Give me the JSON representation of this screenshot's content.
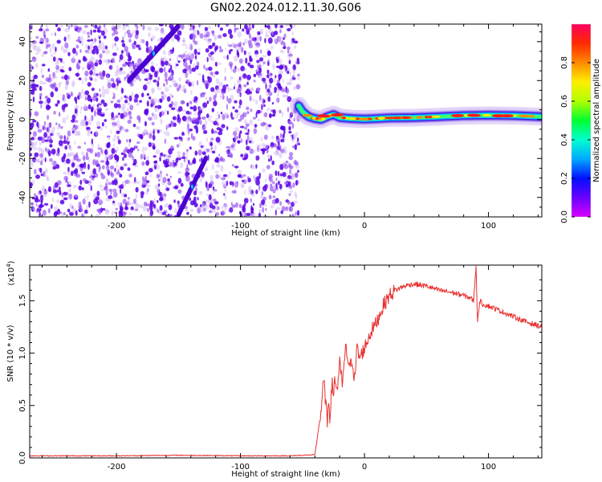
{
  "figure_title": "GN02.2024.012.11.30.G06",
  "colors": {
    "snr_line": "#e8302e",
    "scatter_dark": "#5b00e6",
    "scatter_mid": "#8a3cf0",
    "scatter_light": "#d2b8f5",
    "colormap": [
      "#d900ff",
      "#6a00ff",
      "#0010ff",
      "#00a8ff",
      "#00ffd0",
      "#00ff30",
      "#b0ff00",
      "#ffee00",
      "#ff8a00",
      "#ff2a00",
      "#ff0060"
    ]
  },
  "chart_data": [
    {
      "type": "heatmap",
      "xlabel": "Height of straight line (km)",
      "ylabel": "Frequency (Hz)",
      "xlim": [
        -270,
        143
      ],
      "ylim": [
        -50,
        49
      ],
      "xticks": [
        -200,
        -100,
        0,
        100
      ],
      "yticks": [
        -40,
        -20,
        0,
        20,
        40
      ],
      "grid": false,
      "noise_region_x": [
        -270,
        -53
      ],
      "signal_track": {
        "x": [
          -53,
          -50,
          -45,
          -40,
          -35,
          -30,
          -25,
          -20,
          -10,
          0,
          10,
          20,
          40,
          60,
          80,
          100,
          120,
          143
        ],
        "y": [
          7,
          4,
          1.5,
          0.5,
          0,
          1.5,
          2.5,
          1,
          0.5,
          0.2,
          0.5,
          0.8,
          1,
          1.5,
          2,
          2.2,
          2,
          1.5
        ]
      },
      "ducted_traces": [
        {
          "x": [
            -190,
            -150
          ],
          "y": [
            20,
            48
          ]
        },
        {
          "x": [
            -150,
            -128
          ],
          "y": [
            -49,
            -20
          ]
        }
      ],
      "colorbar": {
        "label": "Normalized spectral amplitude",
        "range": [
          0,
          1
        ],
        "ticks": [
          "0.0",
          "0.2",
          "0.4",
          "0.6",
          "0.8"
        ]
      }
    },
    {
      "type": "line",
      "xlabel": "Height of straight line (km)",
      "ylabel": "SNR (10 * v/v)",
      "yscale_label": "(x10",
      "yscale_exp": "4",
      "yscale_close": ")",
      "xlim": [
        -270,
        143
      ],
      "ylim": [
        0,
        1.84
      ],
      "xticks": [
        -200,
        -100,
        0,
        100
      ],
      "yticks": [
        "0.0",
        "0.5",
        "1.0",
        "1.5"
      ],
      "grid": false,
      "series": [
        {
          "x": [
            -270,
            -200,
            -150,
            -100,
            -60,
            -40,
            -35,
            -33,
            -31,
            -30,
            -29,
            -28,
            -27,
            -26,
            -25,
            -24,
            -22,
            -20,
            -18,
            -15,
            -12,
            -10,
            -8,
            -6,
            -4,
            -2,
            0,
            5,
            10,
            15,
            20,
            25,
            30,
            35,
            40,
            50,
            60,
            70,
            80,
            85,
            88,
            90,
            91,
            93,
            95,
            100,
            110,
            120,
            130,
            143
          ],
          "y": [
            0.02,
            0.02,
            0.025,
            0.02,
            0.02,
            0.03,
            0.45,
            0.75,
            0.5,
            0.3,
            0.6,
            0.4,
            0.55,
            0.7,
            0.62,
            0.75,
            0.65,
            0.9,
            0.7,
            1.05,
            0.85,
            0.95,
            0.75,
            1.05,
            0.95,
            1.0,
            1.05,
            1.2,
            1.3,
            1.45,
            1.55,
            1.6,
            1.63,
            1.65,
            1.66,
            1.64,
            1.6,
            1.58,
            1.55,
            1.53,
            1.5,
            1.85,
            1.3,
            1.5,
            1.47,
            1.45,
            1.4,
            1.35,
            1.3,
            1.25
          ]
        }
      ]
    }
  ]
}
